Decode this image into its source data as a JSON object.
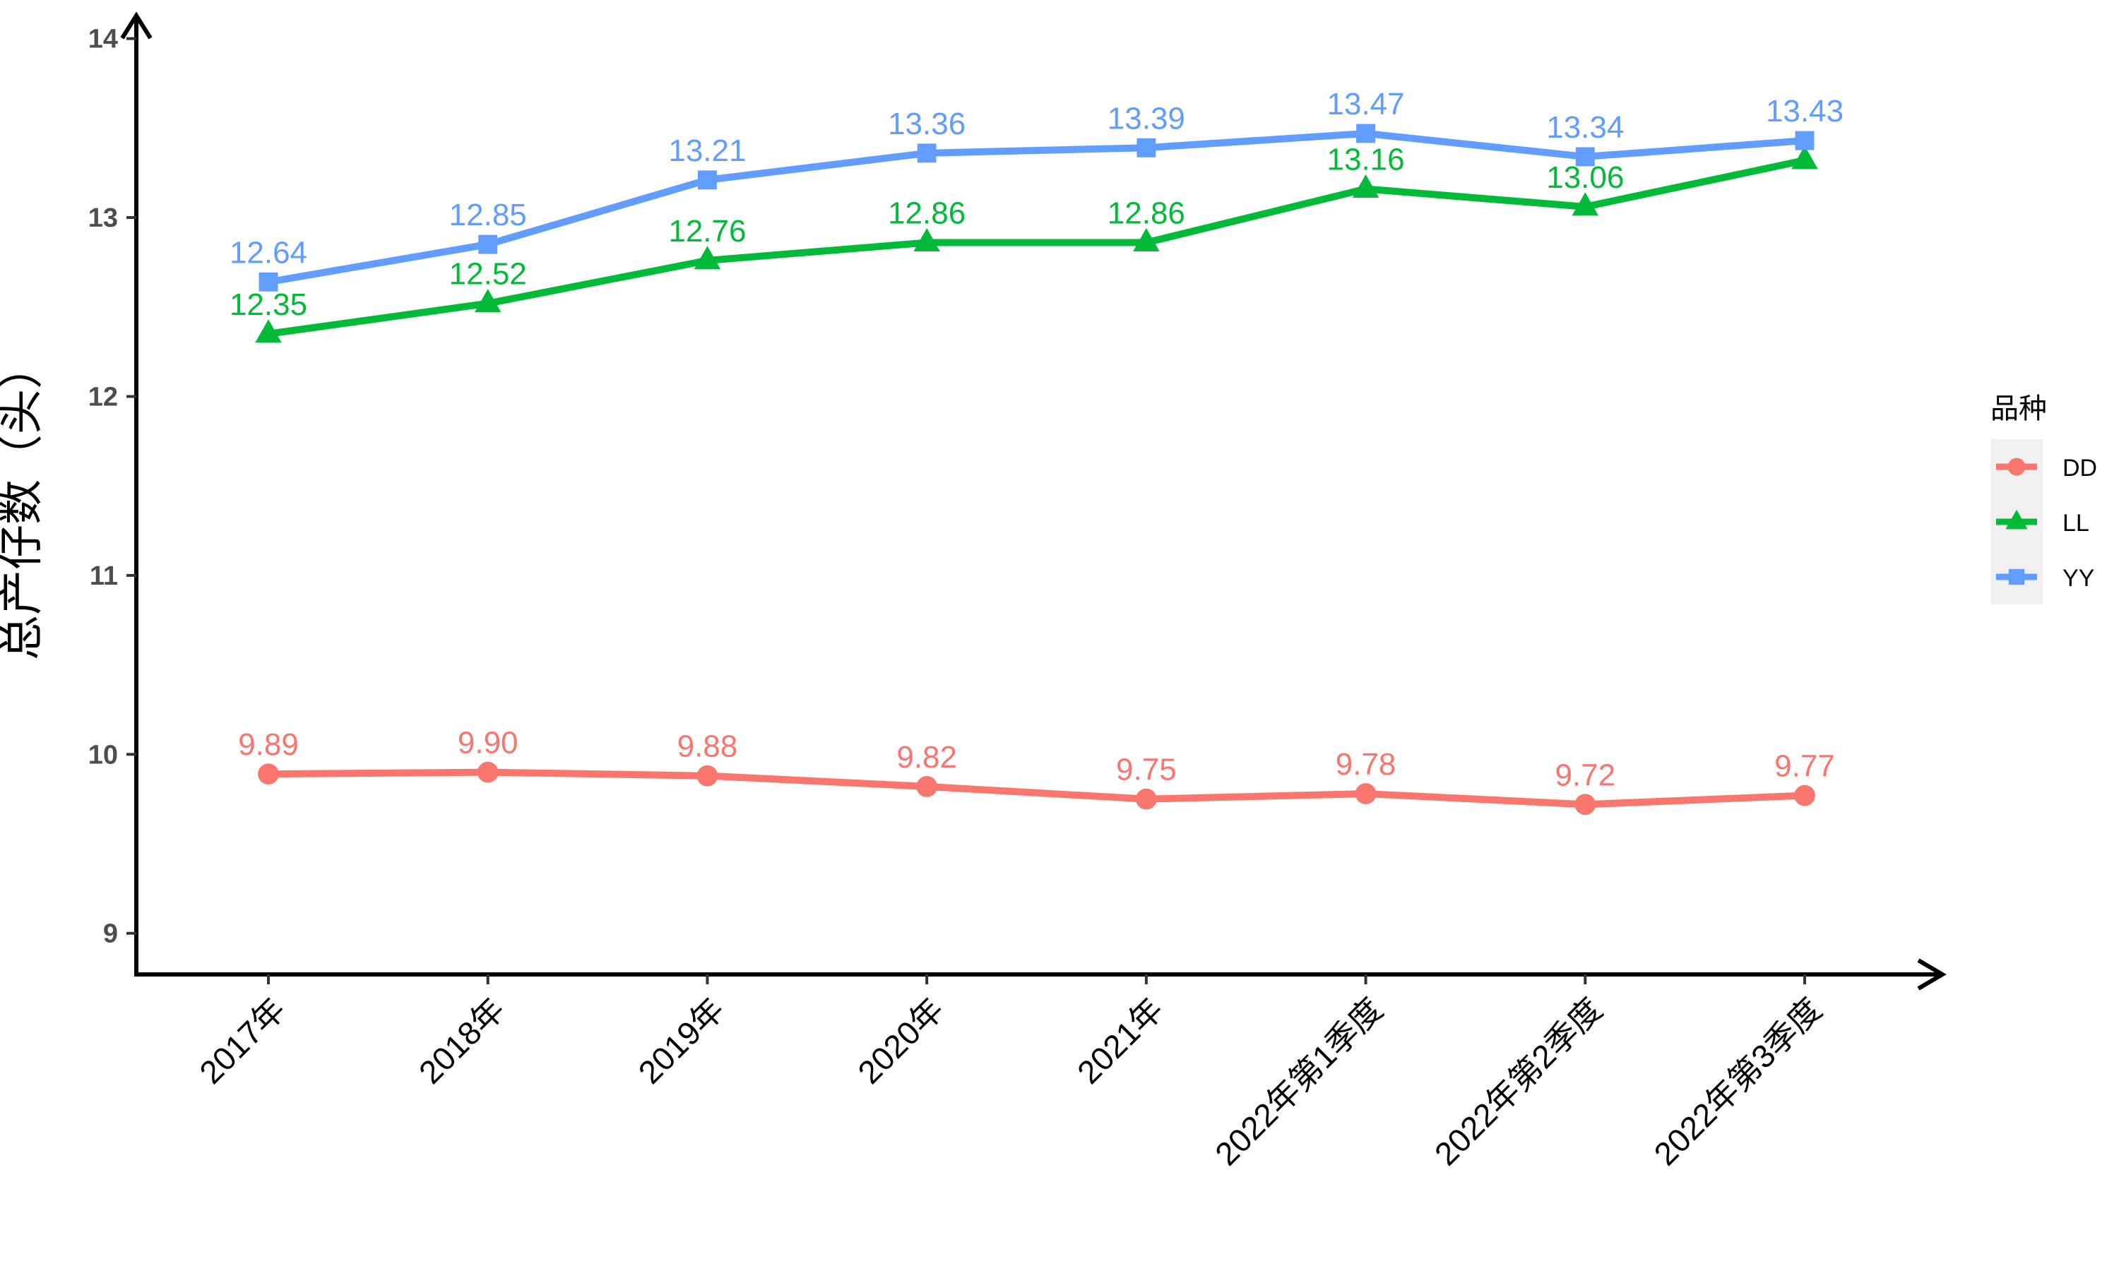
{
  "chart_data": {
    "type": "line",
    "categories": [
      "2017年",
      "2018年",
      "2019年",
      "2020年",
      "2021年",
      "2022年第1季度",
      "2022年第2季度",
      "2022年第3季度"
    ],
    "series": [
      {
        "name": "DD",
        "color": "#F8766D",
        "marker": "circle",
        "values": [
          9.89,
          9.9,
          9.88,
          9.82,
          9.75,
          9.78,
          9.72,
          9.77
        ],
        "labels": [
          "9.89",
          "9.90",
          "9.88",
          "9.82",
          "9.75",
          "9.78",
          "9.72",
          "9.77"
        ]
      },
      {
        "name": "LL",
        "color": "#00BA38",
        "marker": "triangle",
        "values": [
          12.35,
          12.52,
          12.76,
          12.86,
          12.86,
          13.16,
          13.06,
          13.32
        ],
        "labels": [
          "12.35",
          "12.52",
          "12.76",
          "12.86",
          "12.86",
          "13.16",
          "13.06",
          ""
        ]
      },
      {
        "name": "YY",
        "color": "#619CFF",
        "marker": "square",
        "values": [
          12.64,
          12.85,
          13.21,
          13.36,
          13.39,
          13.47,
          13.34,
          13.43
        ],
        "labels": [
          "12.64",
          "12.85",
          "13.21",
          "13.36",
          "13.39",
          "13.47",
          "13.34",
          "13.43"
        ]
      }
    ],
    "title": "",
    "xlabel": "",
    "ylabel": "总产仔数（头）",
    "ylim": [
      8.77,
      14.05
    ],
    "yticks": [
      9,
      10,
      11,
      12,
      13,
      14
    ],
    "ytick_labels": [
      "9",
      "10",
      "11",
      "12",
      "13",
      "14"
    ],
    "grid": false,
    "legend": {
      "title": "品种",
      "position": "right"
    }
  }
}
